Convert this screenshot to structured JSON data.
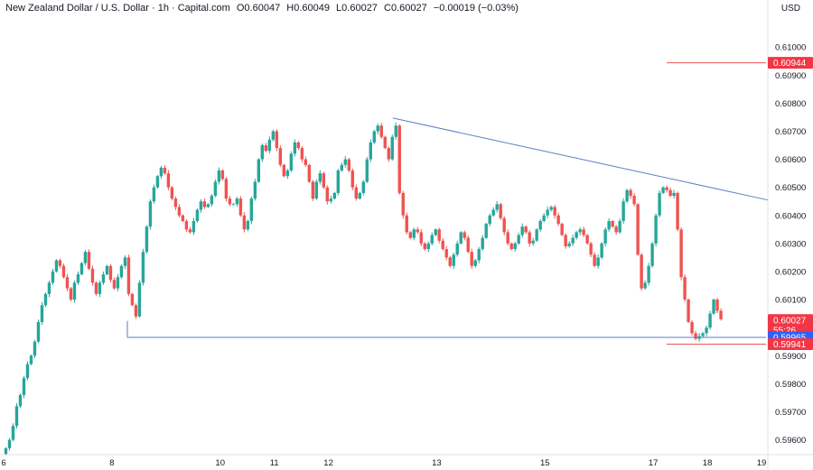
{
  "header": {
    "symbol": "New Zealand Dollar / U.S. Dollar · 1h · Capital.com",
    "open": "O0.60047",
    "high": "H0.60049",
    "low": "L0.60027",
    "close": "C0.60027",
    "change": "−0.00019 (−0.03%)"
  },
  "currency": "USD",
  "colors": {
    "up": "#26a69a",
    "down": "#ef5350",
    "trend": "#5b7fc2",
    "level_red": "#ef5350",
    "tag_blue": "#2962ff"
  },
  "price_tags": [
    {
      "label": "0.60944",
      "value": 0.60944,
      "color": "#f23645"
    },
    {
      "label": "0.60027",
      "value": 0.60027,
      "color": "#f23645",
      "sub": "55:26"
    },
    {
      "label": "0.59965",
      "value": 0.59965,
      "color": "#2962ff"
    },
    {
      "label": "0.59941",
      "value": 0.59941,
      "color": "#f23645"
    }
  ],
  "chart_data": {
    "type": "candlestick",
    "title": "New Zealand Dollar / U.S. Dollar · 1h · Capital.com",
    "y_axis_ticks": [
      0.61,
      0.609,
      0.608,
      0.607,
      0.606,
      0.605,
      0.604,
      0.603,
      0.602,
      0.601,
      0.6,
      0.599,
      0.598,
      0.597,
      0.596
    ],
    "y_tick_labels": [
      "0.61000",
      "0.60900",
      "0.60800",
      "0.60700",
      "0.60600",
      "0.60500",
      "0.60400",
      "0.60300",
      "0.60200",
      "0.60100",
      "0.60000",
      "0.59900",
      "0.59800",
      "0.59700",
      "0.59600"
    ],
    "ylim": [
      0.5956,
      0.6111
    ],
    "x_tick_labels": [
      "6",
      "8",
      "10",
      "11",
      "12",
      "13",
      "15",
      "17",
      "18",
      "19"
    ],
    "x_ticks_hours": [
      0,
      48,
      96,
      120,
      144,
      192,
      240,
      288,
      312,
      336
    ],
    "xlim_hours": [
      0,
      338
    ],
    "candle_path_close": [
      0.5957,
      0.596,
      0.5965,
      0.5972,
      0.5976,
      0.5982,
      0.5987,
      0.599,
      0.5995,
      0.6002,
      0.6008,
      0.6012,
      0.6016,
      0.602,
      0.6024,
      0.6022,
      0.6018,
      0.6014,
      0.601,
      0.6016,
      0.6019,
      0.6023,
      0.6027,
      0.6021,
      0.6016,
      0.6012,
      0.6016,
      0.6019,
      0.6022,
      0.6017,
      0.6014,
      0.6018,
      0.6022,
      0.6025,
      0.6012,
      0.6008,
      0.6004,
      0.6016,
      0.6027,
      0.6036,
      0.6045,
      0.605,
      0.6054,
      0.6057,
      0.6055,
      0.605,
      0.6046,
      0.6043,
      0.604,
      0.6038,
      0.6035,
      0.6034,
      0.6038,
      0.6042,
      0.6045,
      0.6043,
      0.6044,
      0.6047,
      0.6052,
      0.6056,
      0.6053,
      0.6046,
      0.6044,
      0.6044,
      0.6046,
      0.604,
      0.6035,
      0.6038,
      0.6046,
      0.6052,
      0.606,
      0.6065,
      0.6063,
      0.6067,
      0.607,
      0.6064,
      0.6058,
      0.6054,
      0.6056,
      0.6062,
      0.6066,
      0.6064,
      0.606,
      0.6058,
      0.6052,
      0.6046,
      0.6052,
      0.6055,
      0.605,
      0.6045,
      0.6046,
      0.6048,
      0.6056,
      0.6058,
      0.606,
      0.6056,
      0.605,
      0.6046,
      0.6048,
      0.6052,
      0.606,
      0.6066,
      0.607,
      0.6072,
      0.6068,
      0.6064,
      0.606,
      0.6068,
      0.6072,
      0.6048,
      0.604,
      0.6034,
      0.6032,
      0.6035,
      0.6034,
      0.603,
      0.6028,
      0.603,
      0.6033,
      0.6035,
      0.6031,
      0.6028,
      0.6025,
      0.6022,
      0.6026,
      0.603,
      0.6034,
      0.6032,
      0.6027,
      0.6022,
      0.6024,
      0.6028,
      0.6032,
      0.6037,
      0.604,
      0.6042,
      0.6044,
      0.6039,
      0.6034,
      0.603,
      0.6028,
      0.603,
      0.6033,
      0.6036,
      0.6034,
      0.603,
      0.6031,
      0.6035,
      0.6038,
      0.604,
      0.6042,
      0.6043,
      0.604,
      0.6037,
      0.6033,
      0.6029,
      0.603,
      0.6032,
      0.6034,
      0.6035,
      0.6033,
      0.603,
      0.6026,
      0.6022,
      0.6025,
      0.603,
      0.6035,
      0.6038,
      0.6036,
      0.6034,
      0.6038,
      0.6045,
      0.6049,
      0.6047,
      0.6044,
      0.6026,
      0.6014,
      0.6016,
      0.6022,
      0.603,
      0.604,
      0.6048,
      0.605,
      0.6049,
      0.6047,
      0.6048,
      0.6035,
      0.6018,
      0.601,
      0.6002,
      0.5998,
      0.5996,
      0.5997,
      0.5998,
      0.6,
      0.6005,
      0.601,
      0.6006,
      0.6003
    ]
  }
}
